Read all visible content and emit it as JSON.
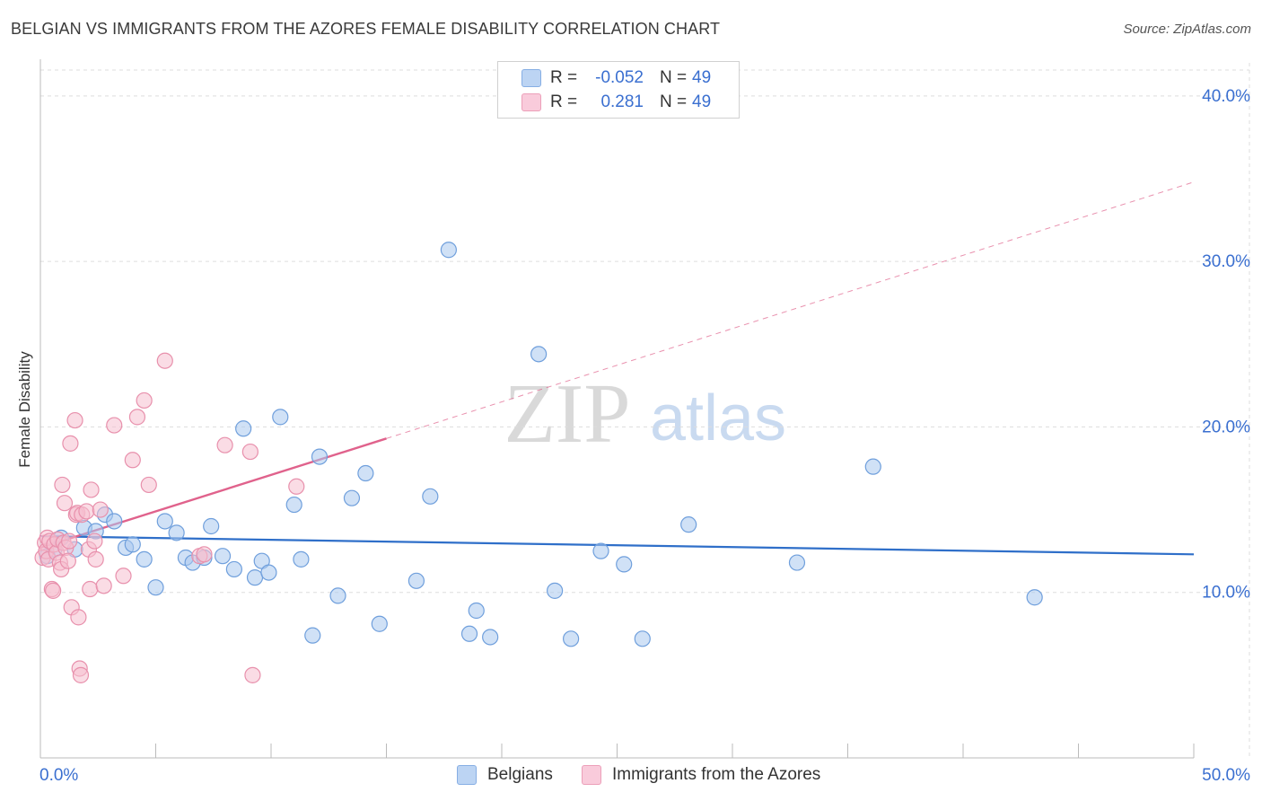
{
  "title": "BELGIAN VS IMMIGRANTS FROM THE AZORES FEMALE DISABILITY CORRELATION CHART",
  "source": "Source: ZipAtlas.com",
  "watermark": {
    "zip": "ZIP",
    "atlas": "atlas"
  },
  "legend_top": {
    "rows": [
      {
        "r_label": "R =",
        "r_value": "-0.052",
        "n_label": "N =",
        "n_value": "49"
      },
      {
        "r_label": "R =",
        "r_value": "0.281",
        "n_label": "N =",
        "n_value": "49"
      }
    ]
  },
  "legend_bottom": {
    "items": [
      "Belgians",
      "Immigrants from the Azores"
    ]
  },
  "colors": {
    "blue_fill": "#a9c8ef",
    "blue_stroke": "#6f9fdc",
    "blue_line": "#2f6fc9",
    "pink_fill": "#f6bfd0",
    "pink_stroke": "#e890ac",
    "pink_line": "#e0628c",
    "axis_text": "#3a6fd0",
    "grid": "#dddddd"
  },
  "chart_data": {
    "type": "scatter",
    "title": "BELGIAN VS IMMIGRANTS FROM THE AZORES FEMALE DISABILITY CORRELATION CHART",
    "xlabel": "",
    "ylabel": "Female Disability",
    "xlim": [
      0,
      50
    ],
    "ylim": [
      0,
      42
    ],
    "x_tick_labels": [
      "0.0%",
      "50.0%"
    ],
    "y_ticks": [
      10,
      20,
      30,
      40
    ],
    "y_tick_labels": [
      "10.0%",
      "20.0%",
      "30.0%",
      "40.0%"
    ],
    "grid": true,
    "legend_position": "bottom",
    "series": [
      {
        "name": "Belgians",
        "r": -0.052,
        "n": 49,
        "trend": {
          "x": [
            0,
            50
          ],
          "y": [
            13.4,
            12.3
          ],
          "dashed_to": null
        },
        "points": [
          {
            "x": 0.3,
            "y": 12.2
          },
          {
            "x": 0.6,
            "y": 12.6
          },
          {
            "x": 0.9,
            "y": 13.3
          },
          {
            "x": 1.5,
            "y": 12.6
          },
          {
            "x": 1.9,
            "y": 13.9
          },
          {
            "x": 2.4,
            "y": 13.7
          },
          {
            "x": 2.8,
            "y": 14.7
          },
          {
            "x": 3.2,
            "y": 14.3
          },
          {
            "x": 3.7,
            "y": 12.7
          },
          {
            "x": 4.0,
            "y": 12.9
          },
          {
            "x": 4.5,
            "y": 12.0
          },
          {
            "x": 5.0,
            "y": 10.3
          },
          {
            "x": 5.4,
            "y": 14.3
          },
          {
            "x": 5.9,
            "y": 13.6
          },
          {
            "x": 6.3,
            "y": 12.1
          },
          {
            "x": 6.6,
            "y": 11.8
          },
          {
            "x": 7.1,
            "y": 12.1
          },
          {
            "x": 7.4,
            "y": 14.0
          },
          {
            "x": 7.9,
            "y": 12.2
          },
          {
            "x": 8.4,
            "y": 11.4
          },
          {
            "x": 8.8,
            "y": 19.9
          },
          {
            "x": 9.3,
            "y": 10.9
          },
          {
            "x": 9.6,
            "y": 11.9
          },
          {
            "x": 9.9,
            "y": 11.2
          },
          {
            "x": 10.4,
            "y": 20.6
          },
          {
            "x": 11.0,
            "y": 15.3
          },
          {
            "x": 11.3,
            "y": 12.0
          },
          {
            "x": 11.8,
            "y": 7.4
          },
          {
            "x": 12.1,
            "y": 18.2
          },
          {
            "x": 12.9,
            "y": 9.8
          },
          {
            "x": 13.5,
            "y": 15.7
          },
          {
            "x": 14.1,
            "y": 17.2
          },
          {
            "x": 14.7,
            "y": 8.1
          },
          {
            "x": 16.3,
            "y": 10.7
          },
          {
            "x": 16.9,
            "y": 15.8
          },
          {
            "x": 17.7,
            "y": 30.7
          },
          {
            "x": 18.6,
            "y": 7.5
          },
          {
            "x": 18.9,
            "y": 8.9
          },
          {
            "x": 19.5,
            "y": 7.3
          },
          {
            "x": 21.6,
            "y": 24.4
          },
          {
            "x": 22.3,
            "y": 10.1
          },
          {
            "x": 23.0,
            "y": 7.2
          },
          {
            "x": 24.3,
            "y": 12.5
          },
          {
            "x": 25.3,
            "y": 11.7
          },
          {
            "x": 26.1,
            "y": 7.2
          },
          {
            "x": 28.1,
            "y": 14.1
          },
          {
            "x": 32.8,
            "y": 11.8
          },
          {
            "x": 36.1,
            "y": 17.6
          },
          {
            "x": 43.1,
            "y": 9.7
          }
        ]
      },
      {
        "name": "Immigrants from the Azores",
        "r": 0.281,
        "n": 49,
        "trend": {
          "x": [
            0,
            15
          ],
          "y": [
            12.7,
            19.3
          ],
          "dashed_to": [
            50,
            34.8
          ]
        },
        "points": [
          {
            "x": 0.1,
            "y": 12.1
          },
          {
            "x": 0.2,
            "y": 13.0
          },
          {
            "x": 0.25,
            "y": 12.5
          },
          {
            "x": 0.3,
            "y": 13.3
          },
          {
            "x": 0.35,
            "y": 12.0
          },
          {
            "x": 0.4,
            "y": 13.1
          },
          {
            "x": 0.5,
            "y": 10.2
          },
          {
            "x": 0.55,
            "y": 10.1
          },
          {
            "x": 0.6,
            "y": 12.9
          },
          {
            "x": 0.7,
            "y": 12.4
          },
          {
            "x": 0.75,
            "y": 13.2
          },
          {
            "x": 0.85,
            "y": 11.8
          },
          {
            "x": 0.9,
            "y": 11.4
          },
          {
            "x": 0.95,
            "y": 16.5
          },
          {
            "x": 1.0,
            "y": 13.0
          },
          {
            "x": 1.05,
            "y": 15.4
          },
          {
            "x": 1.1,
            "y": 12.7
          },
          {
            "x": 1.2,
            "y": 11.9
          },
          {
            "x": 1.25,
            "y": 13.1
          },
          {
            "x": 1.3,
            "y": 19.0
          },
          {
            "x": 1.35,
            "y": 9.1
          },
          {
            "x": 1.5,
            "y": 20.4
          },
          {
            "x": 1.55,
            "y": 14.7
          },
          {
            "x": 1.6,
            "y": 14.8
          },
          {
            "x": 1.65,
            "y": 8.5
          },
          {
            "x": 1.7,
            "y": 5.4
          },
          {
            "x": 1.75,
            "y": 5.0
          },
          {
            "x": 1.8,
            "y": 14.7
          },
          {
            "x": 2.0,
            "y": 14.9
          },
          {
            "x": 2.1,
            "y": 12.6
          },
          {
            "x": 2.15,
            "y": 10.2
          },
          {
            "x": 2.2,
            "y": 16.2
          },
          {
            "x": 2.35,
            "y": 13.1
          },
          {
            "x": 2.4,
            "y": 12.0
          },
          {
            "x": 2.6,
            "y": 15.0
          },
          {
            "x": 2.75,
            "y": 10.4
          },
          {
            "x": 3.2,
            "y": 20.1
          },
          {
            "x": 3.6,
            "y": 11.0
          },
          {
            "x": 4.0,
            "y": 18.0
          },
          {
            "x": 4.2,
            "y": 20.6
          },
          {
            "x": 4.5,
            "y": 21.6
          },
          {
            "x": 4.7,
            "y": 16.5
          },
          {
            "x": 5.4,
            "y": 24.0
          },
          {
            "x": 6.9,
            "y": 12.2
          },
          {
            "x": 7.1,
            "y": 12.3
          },
          {
            "x": 8.0,
            "y": 18.9
          },
          {
            "x": 9.1,
            "y": 18.5
          },
          {
            "x": 9.2,
            "y": 5.0
          },
          {
            "x": 11.1,
            "y": 16.4
          }
        ]
      }
    ]
  }
}
